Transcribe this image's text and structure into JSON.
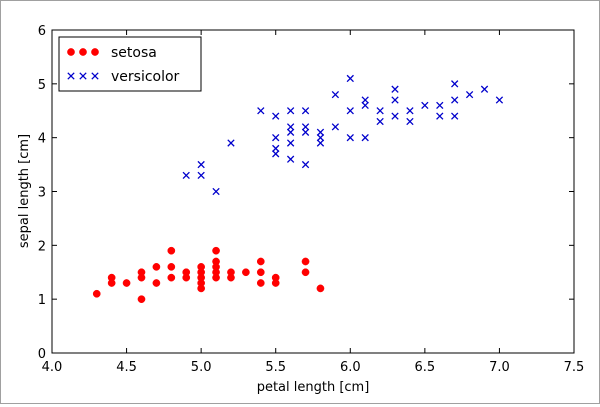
{
  "chart_data": {
    "type": "scatter",
    "xlabel": "petal length  [cm]",
    "ylabel": "sepal length  [cm]",
    "xlim": [
      4.0,
      7.5
    ],
    "ylim": [
      0,
      6
    ],
    "x_ticks": [
      "4.0",
      "4.5",
      "5.0",
      "5.5",
      "6.0",
      "6.5",
      "7.0",
      "7.5"
    ],
    "y_ticks": [
      "0",
      "1",
      "2",
      "3",
      "4",
      "5",
      "6"
    ],
    "grid": false,
    "legend_position": "top-left",
    "series": [
      {
        "name": "setosa",
        "marker": "circle",
        "color": "#ff0000",
        "points": [
          [
            4.3,
            1.1
          ],
          [
            4.4,
            1.4
          ],
          [
            4.4,
            1.3
          ],
          [
            4.5,
            1.3
          ],
          [
            4.6,
            1.5
          ],
          [
            4.6,
            1.4
          ],
          [
            4.6,
            1.0
          ],
          [
            4.7,
            1.6
          ],
          [
            4.7,
            1.3
          ],
          [
            4.8,
            1.9
          ],
          [
            4.8,
            1.6
          ],
          [
            4.8,
            1.4
          ],
          [
            4.9,
            1.5
          ],
          [
            4.9,
            1.4
          ],
          [
            5.0,
            1.6
          ],
          [
            5.0,
            1.5
          ],
          [
            5.0,
            1.4
          ],
          [
            5.0,
            1.3
          ],
          [
            5.0,
            1.2
          ],
          [
            5.1,
            1.9
          ],
          [
            5.1,
            1.7
          ],
          [
            5.1,
            1.6
          ],
          [
            5.1,
            1.5
          ],
          [
            5.1,
            1.4
          ],
          [
            5.2,
            1.5
          ],
          [
            5.2,
            1.4
          ],
          [
            5.3,
            1.5
          ],
          [
            5.4,
            1.7
          ],
          [
            5.4,
            1.5
          ],
          [
            5.4,
            1.3
          ],
          [
            5.5,
            1.4
          ],
          [
            5.5,
            1.3
          ],
          [
            5.7,
            1.7
          ],
          [
            5.7,
            1.5
          ],
          [
            5.8,
            1.2
          ]
        ]
      },
      {
        "name": "versicolor",
        "marker": "x",
        "color": "#0000cc",
        "points": [
          [
            4.9,
            3.3
          ],
          [
            5.0,
            3.5
          ],
          [
            5.0,
            3.3
          ],
          [
            5.1,
            3.0
          ],
          [
            5.2,
            3.9
          ],
          [
            5.4,
            4.5
          ],
          [
            5.5,
            4.4
          ],
          [
            5.5,
            4.0
          ],
          [
            5.5,
            3.8
          ],
          [
            5.5,
            3.7
          ],
          [
            5.6,
            4.5
          ],
          [
            5.6,
            4.2
          ],
          [
            5.6,
            4.1
          ],
          [
            5.6,
            3.9
          ],
          [
            5.6,
            3.6
          ],
          [
            5.7,
            4.5
          ],
          [
            5.7,
            4.2
          ],
          [
            5.7,
            4.1
          ],
          [
            5.7,
            3.5
          ],
          [
            5.8,
            4.1
          ],
          [
            5.8,
            4.0
          ],
          [
            5.8,
            3.9
          ],
          [
            5.9,
            4.8
          ],
          [
            5.9,
            4.2
          ],
          [
            6.0,
            5.1
          ],
          [
            6.0,
            4.5
          ],
          [
            6.0,
            4.0
          ],
          [
            6.1,
            4.7
          ],
          [
            6.1,
            4.6
          ],
          [
            6.1,
            4.0
          ],
          [
            6.2,
            4.5
          ],
          [
            6.2,
            4.3
          ],
          [
            6.3,
            4.9
          ],
          [
            6.3,
            4.7
          ],
          [
            6.3,
            4.4
          ],
          [
            6.4,
            4.5
          ],
          [
            6.4,
            4.3
          ],
          [
            6.5,
            4.6
          ],
          [
            6.6,
            4.6
          ],
          [
            6.6,
            4.4
          ],
          [
            6.7,
            5.0
          ],
          [
            6.7,
            4.7
          ],
          [
            6.7,
            4.4
          ],
          [
            6.8,
            4.8
          ],
          [
            6.9,
            4.9
          ],
          [
            7.0,
            4.7
          ]
        ]
      }
    ]
  }
}
